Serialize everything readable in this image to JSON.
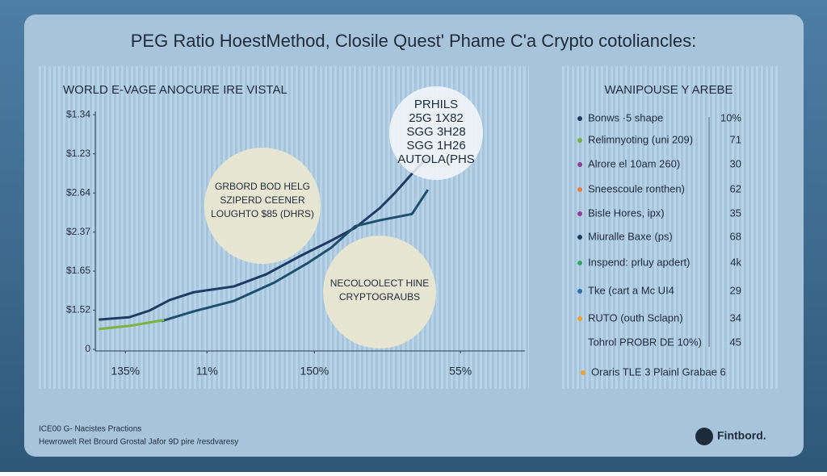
{
  "header": {
    "title": "PEG Ratio HoestMethod, Closile Quest' Phame C'a Crypto cotoliancles:"
  },
  "chart_data": {
    "type": "line",
    "title": "WORLD E-VAGE ANOCURE IRE VISTAL",
    "xlim": [
      0,
      10
    ],
    "xticks": [
      {
        "value": 0.7,
        "label": "135%"
      },
      {
        "value": 2.6,
        "label": "11%"
      },
      {
        "value": 5.1,
        "label": "150%"
      },
      {
        "value": 8.5,
        "label": "55%"
      }
    ],
    "ylim": [
      0,
      7.2
    ],
    "yticks": [
      0,
      {
        "value": 1,
        "label": "$1.52"
      },
      {
        "value": 2,
        "label": "$1.65"
      },
      {
        "value": 3,
        "label": "$2.37"
      },
      {
        "value": 4,
        "label": "$2.64"
      },
      {
        "value": 5,
        "label": "$1.23"
      },
      {
        "value": 6,
        "label": "$1.34"
      }
    ],
    "series": [
      {
        "color": "#1f3a63",
        "x": [
          0.08,
          0.79,
          1.26,
          1.73,
          2.29,
          3.23,
          3.98,
          4.74,
          5.49,
          6.05,
          6.62,
          6.99,
          7.37,
          7.74
        ],
        "values": [
          0.76,
          0.82,
          0.99,
          1.26,
          1.46,
          1.61,
          1.92,
          2.37,
          2.78,
          3.11,
          3.61,
          4.02,
          4.49,
          4.91
        ]
      },
      {
        "color": "#1d4f6e",
        "x": [
          1.54,
          2.29,
          3.23,
          4.17,
          4.92,
          5.49,
          6.05,
          6.62,
          7.37,
          7.74
        ],
        "values": [
          0.72,
          0.97,
          1.24,
          1.71,
          2.19,
          2.6,
          3.15,
          3.3,
          3.46,
          4.08
        ]
      },
      {
        "color": "#7cb342",
        "x": [
          0.08,
          0.8,
          1.6
        ],
        "values": [
          0.52,
          0.6,
          0.75
        ]
      }
    ],
    "annotations": [
      {
        "lines": [
          "PRHILS",
          "25G 1X82",
          "SGG 3H28",
          "SGG 1H26",
          "AUTOLA(PHS"
        ]
      },
      {
        "lines": [
          "GRBORD BOD HELG",
          "SZIPERD CEENER",
          "LOUGHTO $85 (DHRS)"
        ]
      },
      {
        "lines": [
          "NECOLOOLECT HINE",
          "CRYPTOGRAUBS"
        ]
      }
    ]
  },
  "sidebar": {
    "title": "WANIPOUSE Y AREBE",
    "rows": [
      {
        "color": "#1f3a63",
        "label": "Bonws ·5 shape",
        "value": "10%"
      },
      {
        "color": "#7cb342",
        "label": "Relimnyoting (uni 209)",
        "value": "71"
      },
      {
        "color": "#8e3d9e",
        "label": "Alrore el 10am 260)",
        "value": "30"
      },
      {
        "color": "#e8823a",
        "label": "Sneescoule ronthen)",
        "value": "62"
      },
      {
        "color": "#8e3d9e",
        "label": "Bisle Hores, ipx)",
        "value": "35"
      },
      {
        "color": "#1f3a63",
        "label": "Miuralle Baxe (ps)",
        "value": "68"
      },
      {
        "color": "#3aa36a",
        "label": "Inspend: prluy apdert)",
        "value": "4k"
      },
      {
        "color": "#2f6db5",
        "label": "Tke (cart a Mc UI4",
        "value": "29"
      },
      {
        "color": "#f0a030",
        "label": "RUTO (outh Sclapn)",
        "value": "34"
      },
      {
        "color": null,
        "label": "Tohrol PROBR DE 10%)",
        "value": "45"
      }
    ],
    "footer": {
      "color": "#f0a030",
      "label": "Oraris TLE 3 Plainl Grabae 6"
    }
  },
  "footer": {
    "lines": [
      "ICE00 G- Nacistes Practions",
      "Hewrowelt Ret Brourd Grostal Jafor 9D pire /resdvaresy"
    ],
    "logo": "Fintbord."
  }
}
